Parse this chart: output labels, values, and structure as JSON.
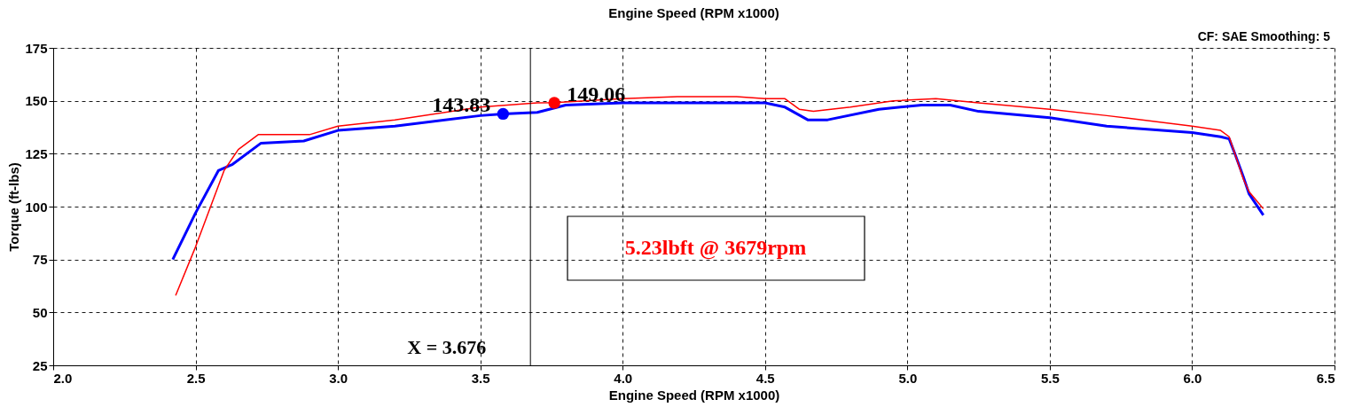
{
  "chart_data": {
    "type": "line",
    "title": "Engine Speed (RPM x1000)",
    "xlabel": "Engine Speed (RPM x1000)",
    "ylabel": "Torque (ft-lbs)",
    "xlim": [
      2.0,
      6.5
    ],
    "ylim": [
      25,
      175
    ],
    "xticks": [
      {
        "value": 2,
        "label": "2.0"
      },
      2.5,
      {
        "value": 3,
        "label": "3.0"
      },
      3.5,
      {
        "value": 4,
        "label": "4.0"
      },
      4.5,
      {
        "value": 5,
        "label": "5.0"
      },
      5.5,
      {
        "value": 6,
        "label": "6.0"
      },
      6.5
    ],
    "yticks": [
      25,
      50,
      75,
      100,
      125,
      150,
      175
    ],
    "grid": true,
    "marker": "none",
    "line_style": "solid",
    "series": [
      {
        "color": "#0000ff",
        "x": [
          2.42,
          2.5,
          2.58,
          2.63,
          2.73,
          2.88,
          3.0,
          3.2,
          3.5,
          3.58,
          3.7,
          3.8,
          4.0,
          4.5,
          4.57,
          4.65,
          4.72,
          4.9,
          5.05,
          5.15,
          5.25,
          5.5,
          5.7,
          6.0,
          6.1,
          6.13,
          6.15,
          6.18,
          6.2,
          6.25
        ],
        "values": [
          75,
          97,
          117,
          120,
          130,
          131,
          136,
          138,
          143,
          143.8,
          144.5,
          148,
          149,
          149,
          147,
          141,
          141,
          146,
          148,
          148,
          145,
          142,
          138,
          135,
          133,
          132,
          125,
          114,
          106,
          96
        ]
      },
      {
        "color": "#ff0000",
        "x": [
          2.43,
          2.5,
          2.6,
          2.65,
          2.72,
          2.9,
          3.0,
          3.2,
          3.5,
          3.7,
          3.76,
          4.0,
          4.2,
          4.4,
          4.5,
          4.57,
          4.62,
          4.67,
          4.8,
          4.95,
          5.1,
          5.25,
          5.5,
          5.7,
          6.0,
          6.1,
          6.13,
          6.15,
          6.18,
          6.2,
          6.25
        ],
        "values": [
          58,
          81,
          117,
          127,
          134,
          134,
          138,
          141,
          147,
          149,
          149.1,
          151,
          152,
          152,
          151,
          151,
          146,
          145,
          147,
          150,
          151,
          149,
          146,
          143,
          138,
          136,
          133,
          125,
          113,
          107,
          99
        ]
      },
      {
        "type": "scatter",
        "marker": "circle",
        "color": "#0000ff",
        "x": [
          3.58
        ],
        "values": [
          143.83
        ]
      },
      {
        "type": "scatter",
        "marker": "circle",
        "color": "#ff0000",
        "x": [
          3.76
        ],
        "values": [
          149.06
        ]
      }
    ],
    "ref_lines": [
      {
        "axis": "x",
        "value": 3.676,
        "label": "X = 3.676",
        "color": "#000000"
      }
    ],
    "annotations": [
      {
        "text": "143.83",
        "x": 3.58,
        "y": 143.83
      },
      {
        "text": "149.06",
        "x": 3.76,
        "y": 149.06
      },
      "5.23lbft @ 3679rpm",
      "CF: SAE  Smoothing: 5"
    ]
  }
}
